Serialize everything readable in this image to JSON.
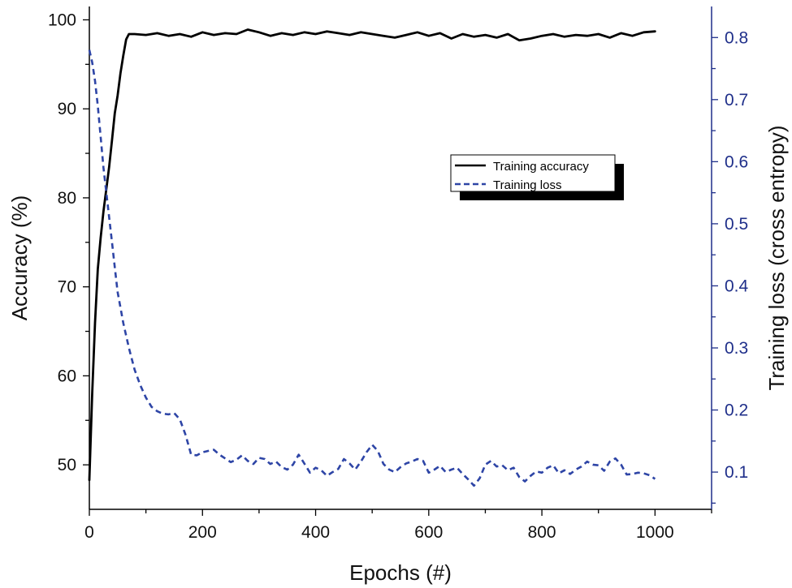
{
  "chart_data": {
    "type": "line",
    "title": "",
    "xlabel": "Epochs (#)",
    "ylabel_left": "Accuracy (%)",
    "ylabel_right": "Training loss (cross entropy)",
    "xlim": [
      0,
      1100
    ],
    "ylim_left": [
      45,
      101.5
    ],
    "ylim_right": [
      0.04,
      0.85
    ],
    "xticks": [
      0,
      200,
      400,
      600,
      800,
      1000
    ],
    "yticks_left": [
      50,
      60,
      70,
      80,
      90,
      100
    ],
    "yticks_right": [
      0.1,
      0.2,
      0.3,
      0.4,
      0.5,
      0.6,
      0.7,
      0.8
    ],
    "grid": false,
    "legend_position": "upper-right-inside",
    "colors": {
      "accuracy": "#000000",
      "loss": "#2e45a6",
      "right_axis": "#1f2f8a"
    },
    "series": [
      {
        "name": "Training accuracy",
        "axis": "left",
        "style": "solid",
        "x": [
          0,
          5,
          10,
          15,
          20,
          25,
          30,
          35,
          40,
          45,
          50,
          55,
          60,
          65,
          70,
          80,
          100,
          120,
          140,
          160,
          180,
          200,
          220,
          240,
          260,
          280,
          300,
          320,
          340,
          360,
          380,
          400,
          420,
          440,
          460,
          480,
          500,
          520,
          540,
          560,
          580,
          600,
          620,
          640,
          660,
          680,
          700,
          720,
          740,
          760,
          780,
          800,
          820,
          840,
          860,
          880,
          900,
          920,
          940,
          960,
          980,
          1000
        ],
        "y": [
          48.3,
          58.0,
          66.0,
          72.0,
          75.5,
          78.5,
          81.0,
          83.5,
          86.5,
          89.5,
          91.5,
          94.0,
          96.0,
          97.8,
          98.4,
          98.4,
          98.3,
          98.5,
          98.2,
          98.4,
          98.1,
          98.6,
          98.3,
          98.5,
          98.4,
          98.9,
          98.6,
          98.2,
          98.5,
          98.3,
          98.6,
          98.4,
          98.7,
          98.5,
          98.3,
          98.6,
          98.4,
          98.2,
          98.0,
          98.3,
          98.6,
          98.2,
          98.5,
          97.9,
          98.4,
          98.1,
          98.3,
          98.0,
          98.4,
          97.7,
          97.9,
          98.2,
          98.4,
          98.1,
          98.3,
          98.2,
          98.4,
          98.0,
          98.5,
          98.2,
          98.6,
          98.7
        ]
      },
      {
        "name": "Training loss",
        "axis": "right",
        "style": "dashed",
        "x": [
          0,
          5,
          10,
          15,
          20,
          25,
          30,
          35,
          40,
          45,
          50,
          60,
          70,
          80,
          90,
          100,
          110,
          120,
          130,
          140,
          150,
          160,
          170,
          180,
          190,
          200,
          210,
          220,
          230,
          240,
          250,
          260,
          270,
          280,
          290,
          300,
          310,
          320,
          330,
          340,
          350,
          360,
          370,
          380,
          390,
          400,
          410,
          420,
          430,
          440,
          450,
          460,
          470,
          480,
          490,
          500,
          510,
          520,
          530,
          540,
          550,
          560,
          570,
          580,
          590,
          600,
          610,
          620,
          630,
          640,
          650,
          660,
          670,
          680,
          690,
          700,
          710,
          720,
          730,
          740,
          750,
          760,
          770,
          780,
          790,
          800,
          810,
          820,
          830,
          840,
          850,
          860,
          870,
          880,
          890,
          900,
          910,
          920,
          930,
          940,
          950,
          960,
          970,
          980,
          990,
          1000
        ],
        "y": [
          0.78,
          0.76,
          0.73,
          0.69,
          0.64,
          0.59,
          0.55,
          0.51,
          0.47,
          0.43,
          0.39,
          0.34,
          0.3,
          0.265,
          0.24,
          0.22,
          0.205,
          0.198,
          0.194,
          0.193,
          0.195,
          0.185,
          0.16,
          0.128,
          0.127,
          0.132,
          0.134,
          0.136,
          0.128,
          0.122,
          0.116,
          0.12,
          0.127,
          0.118,
          0.113,
          0.123,
          0.121,
          0.113,
          0.117,
          0.108,
          0.104,
          0.112,
          0.128,
          0.114,
          0.099,
          0.107,
          0.103,
          0.094,
          0.1,
          0.105,
          0.121,
          0.114,
          0.104,
          0.117,
          0.132,
          0.144,
          0.134,
          0.113,
          0.104,
          0.1,
          0.108,
          0.114,
          0.117,
          0.121,
          0.118,
          0.099,
          0.104,
          0.11,
          0.1,
          0.104,
          0.107,
          0.097,
          0.088,
          0.078,
          0.09,
          0.112,
          0.118,
          0.109,
          0.111,
          0.103,
          0.107,
          0.092,
          0.085,
          0.094,
          0.101,
          0.099,
          0.107,
          0.111,
          0.098,
          0.103,
          0.097,
          0.104,
          0.109,
          0.117,
          0.112,
          0.111,
          0.102,
          0.117,
          0.122,
          0.112,
          0.096,
          0.097,
          0.099,
          0.098,
          0.095,
          0.089
        ]
      }
    ]
  }
}
